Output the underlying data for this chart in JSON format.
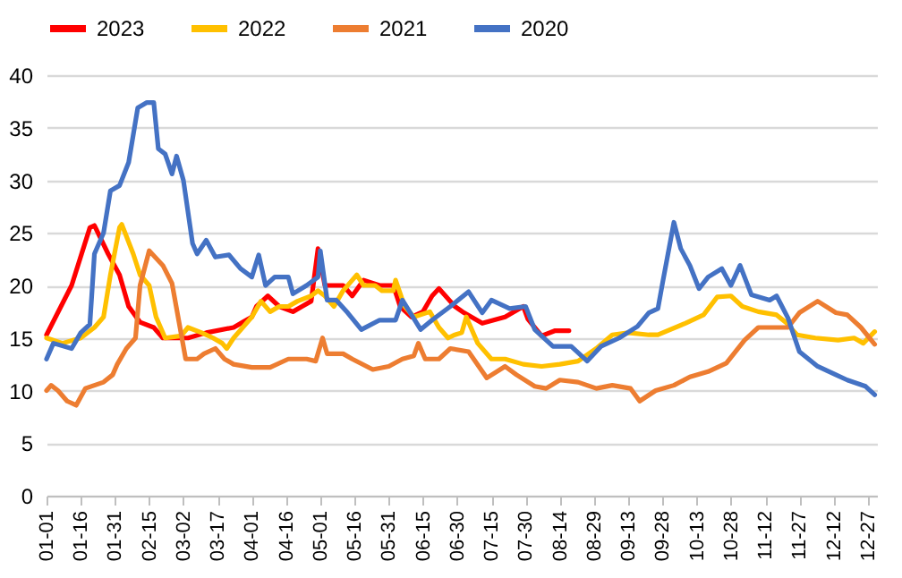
{
  "chart_data": {
    "type": "line",
    "legend": "top",
    "grid": "y",
    "line_style": "solid",
    "marker": "none",
    "xlim": [
      "--01-01",
      "--12-31"
    ],
    "xticks": [
      {
        "value": "--01-01",
        "label": "01-01"
      },
      {
        "value": "--01-16",
        "label": "01-16"
      },
      {
        "value": "--01-31",
        "label": "01-31"
      },
      {
        "value": "--02-15",
        "label": "02-15"
      },
      {
        "value": "--03-02",
        "label": "03-02"
      },
      {
        "value": "--03-17",
        "label": "03-17"
      },
      {
        "value": "--04-01",
        "label": "04-01"
      },
      {
        "value": "--04-16",
        "label": "04-16"
      },
      {
        "value": "--05-01",
        "label": "05-01"
      },
      {
        "value": "--05-16",
        "label": "05-16"
      },
      {
        "value": "--05-31",
        "label": "05-31"
      },
      {
        "value": "--06-15",
        "label": "06-15"
      },
      {
        "value": "--06-30",
        "label": "06-30"
      },
      {
        "value": "--07-15",
        "label": "07-15"
      },
      {
        "value": "--07-30",
        "label": "07-30"
      },
      {
        "value": "--08-14",
        "label": "08-14"
      },
      {
        "value": "--08-29",
        "label": "08-29"
      },
      {
        "value": "--09-13",
        "label": "09-13"
      },
      {
        "value": "--09-28",
        "label": "09-28"
      },
      {
        "value": "--10-13",
        "label": "10-13"
      },
      {
        "value": "--10-28",
        "label": "10-28"
      },
      {
        "value": "--11-12",
        "label": "11-12"
      },
      {
        "value": "--11-27",
        "label": "11-27"
      },
      {
        "value": "--12-12",
        "label": "12-12"
      },
      {
        "value": "--12-27",
        "label": "12-27"
      }
    ],
    "ylim": [
      0,
      40
    ],
    "yticks": [
      0,
      5,
      10,
      15,
      20,
      25,
      30,
      35,
      40
    ],
    "series": [
      {
        "name": "2023",
        "color": "#ff0000",
        "x": [
          "--01-01",
          "--01-12",
          "--01-20",
          "--01-22",
          "--01-28",
          "--02-02",
          "--02-06",
          "--02-11",
          "--02-17",
          "--02-21",
          "--03-04",
          "--03-12",
          "--03-24",
          "--03-28",
          "--04-01",
          "--04-03",
          "--04-08",
          "--04-13",
          "--04-19",
          "--04-23",
          "--04-27",
          "--04-30",
          "--05-03",
          "--05-11",
          "--05-15",
          "--05-20",
          "--05-27",
          "--06-02",
          "--06-05",
          "--06-10",
          "--06-15",
          "--06-19",
          "--06-22",
          "--06-29",
          "--07-03",
          "--07-11",
          "--07-21",
          "--07-29",
          "--07-31",
          "--08-06",
          "--08-12",
          "--08-18"
        ],
        "values": [
          15.3,
          20,
          25.5,
          25.7,
          23,
          21,
          18,
          16.5,
          16,
          15,
          15,
          15.5,
          16,
          16.5,
          17,
          18,
          19,
          18,
          17.5,
          18,
          18.5,
          23.5,
          20,
          20,
          19,
          20.5,
          20,
          20,
          18,
          17,
          17.5,
          19,
          19.7,
          18,
          17.4,
          16.4,
          17,
          18,
          16.8,
          15.2,
          15.7,
          15.7
        ]
      },
      {
        "name": "2022",
        "color": "#ffc000",
        "x": [
          "--01-01",
          "--01-08",
          "--01-16",
          "--01-22",
          "--01-26",
          "--01-29",
          "--02-02",
          "--02-03",
          "--02-08",
          "--02-11",
          "--02-15",
          "--02-18",
          "--02-22",
          "--03-01",
          "--03-04",
          "--03-10",
          "--03-15",
          "--03-19",
          "--03-21",
          "--03-24",
          "--03-28",
          "--04-01",
          "--04-05",
          "--04-09",
          "--04-13",
          "--04-17",
          "--04-21",
          "--04-27",
          "--04-30",
          "--05-03",
          "--05-07",
          "--05-11",
          "--05-15",
          "--05-17",
          "--05-20",
          "--05-25",
          "--05-28",
          "--06-02",
          "--06-03",
          "--06-07",
          "--06-11",
          "--06-18",
          "--06-22",
          "--06-26",
          "--06-29",
          "--07-02",
          "--07-04",
          "--07-09",
          "--07-15",
          "--07-21",
          "--07-29",
          "--08-06",
          "--08-14",
          "--08-22",
          "--08-30",
          "--09-06",
          "--09-13",
          "--09-22",
          "--09-26",
          "--10-08",
          "--10-16",
          "--10-22",
          "--10-28",
          "--11-02",
          "--11-09",
          "--11-17",
          "--11-21",
          "--11-26",
          "--12-04",
          "--12-14",
          "--12-21",
          "--12-25",
          "--12-30"
        ],
        "values": [
          15,
          14.5,
          15,
          16,
          17,
          21,
          25.5,
          25.8,
          23,
          21,
          20,
          17,
          15,
          15.2,
          16,
          15.5,
          15,
          14.5,
          14,
          15,
          16,
          17,
          18.5,
          17.5,
          18,
          18,
          18.5,
          19,
          19.5,
          19,
          18,
          19.5,
          20.5,
          21,
          20,
          20,
          19.5,
          19.5,
          20.5,
          18,
          17,
          17.5,
          16,
          15,
          15.3,
          15.5,
          17,
          14.5,
          13,
          13,
          12.5,
          12.3,
          12.5,
          12.8,
          14,
          15.3,
          15.5,
          15.3,
          15.3,
          16.4,
          17.2,
          18.9,
          19,
          18,
          17.5,
          17.2,
          16.5,
          15.3,
          15,
          14.8,
          15,
          14.5,
          15.6
        ]
      },
      {
        "name": "2021",
        "color": "#ed7d31",
        "x": [
          "--01-01",
          "--01-03",
          "--01-06",
          "--01-10",
          "--01-14",
          "--01-18",
          "--01-26",
          "--01-30",
          "--02-01",
          "--02-05",
          "--02-09",
          "--02-11",
          "--02-15",
          "--02-21",
          "--02-25",
          "--02-26",
          "--03-03",
          "--03-08",
          "--03-11",
          "--03-16",
          "--03-20",
          "--03-24",
          "--04-01",
          "--04-09",
          "--04-17",
          "--04-25",
          "--04-29",
          "--05-02",
          "--05-04",
          "--05-11",
          "--05-15",
          "--05-24",
          "--05-31",
          "--06-06",
          "--06-11",
          "--06-13",
          "--06-16",
          "--06-22",
          "--06-27",
          "--07-05",
          "--07-13",
          "--07-21",
          "--07-26",
          "--08-03",
          "--08-08",
          "--08-14",
          "--08-22",
          "--08-30",
          "--09-06",
          "--09-14",
          "--09-18",
          "--09-25",
          "--10-03",
          "--10-10",
          "--10-18",
          "--10-26",
          "--11-03",
          "--11-09",
          "--11-17",
          "--11-22",
          "--11-27",
          "--12-05",
          "--12-13",
          "--12-18",
          "--12-24",
          "--12-30"
        ],
        "values": [
          10,
          10.5,
          10,
          9,
          8.6,
          10.2,
          10.8,
          11.5,
          12.5,
          14,
          15,
          20,
          23.3,
          21.9,
          20.2,
          19,
          13,
          13,
          13.5,
          14,
          13,
          12.5,
          12.2,
          12.2,
          13,
          13,
          12.8,
          15,
          13.5,
          13.5,
          13,
          12,
          12.3,
          13,
          13.3,
          14.5,
          13,
          13,
          14,
          13.7,
          11.2,
          12.3,
          11.5,
          10.4,
          10.2,
          11,
          10.8,
          10.2,
          10.5,
          10.2,
          9,
          10,
          10.5,
          11.3,
          11.8,
          12.6,
          14.8,
          16,
          16,
          16,
          17.4,
          18.5,
          17.4,
          17.2,
          16,
          14.4
        ]
      },
      {
        "name": "2020",
        "color": "#4472c4",
        "x": [
          "--01-01",
          "--01-04",
          "--01-12",
          "--01-16",
          "--01-20",
          "--01-22",
          "--01-26",
          "--01-29",
          "--02-02",
          "--02-06",
          "--02-10",
          "--02-14",
          "--02-17",
          "--02-19",
          "--02-22",
          "--02-25",
          "--02-27",
          "--03-02",
          "--03-06",
          "--03-08",
          "--03-12",
          "--03-16",
          "--03-22",
          "--03-27",
          "--04-01",
          "--04-04",
          "--04-07",
          "--04-11",
          "--04-17",
          "--04-19",
          "--04-25",
          "--04-30",
          "--05-01",
          "--05-04",
          "--05-08",
          "--05-13",
          "--05-19",
          "--05-27",
          "--06-03",
          "--06-06",
          "--06-14",
          "--06-19",
          "--06-27",
          "--07-05",
          "--07-11",
          "--07-15",
          "--07-23",
          "--07-30",
          "--08-03",
          "--08-11",
          "--08-19",
          "--08-26",
          "--09-01",
          "--09-09",
          "--09-17",
          "--09-22",
          "--09-26",
          "--09-28",
          "--10-03",
          "--10-06",
          "--10-10",
          "--10-14",
          "--10-18",
          "--10-24",
          "--10-28",
          "--11-01",
          "--11-06",
          "--11-14",
          "--11-17",
          "--11-22",
          "--11-27",
          "--12-05",
          "--12-13",
          "--12-18",
          "--12-26",
          "--12-30"
        ],
        "values": [
          13,
          14.5,
          14,
          15.5,
          16.3,
          23,
          25,
          29,
          29.5,
          31.7,
          36.9,
          37.4,
          37.4,
          33,
          32.5,
          30.6,
          32.3,
          30,
          24,
          23,
          24.3,
          22.7,
          22.9,
          21.6,
          20.8,
          22.9,
          20,
          20.8,
          20.8,
          19.2,
          20,
          20.8,
          23.3,
          18.6,
          18.6,
          17.4,
          15.8,
          16.7,
          16.7,
          18.6,
          15.8,
          16.7,
          18,
          19.4,
          17.4,
          18.6,
          17.8,
          18,
          15.8,
          14.2,
          14.2,
          12.8,
          14.2,
          15,
          16.1,
          17.4,
          17.8,
          20.2,
          26,
          23.5,
          21.9,
          19.7,
          20.8,
          21.6,
          20,
          21.9,
          19.1,
          18.6,
          19,
          16.9,
          13.7,
          12.3,
          11.5,
          11,
          10.4,
          9.6
        ]
      }
    ]
  }
}
